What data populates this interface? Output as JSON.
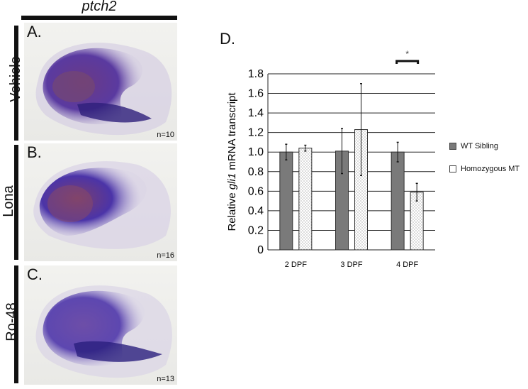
{
  "left": {
    "gene": "ptch2",
    "panels": [
      {
        "letter": "A.",
        "label": "Vehicle",
        "n": "n=10"
      },
      {
        "letter": "B.",
        "label": "Lona",
        "n": "n=16"
      },
      {
        "letter": "C.",
        "label": "Ro-48",
        "n": "n=13"
      }
    ]
  },
  "panel_d": {
    "letter": "D."
  },
  "chart_data": {
    "type": "bar",
    "title": "",
    "xlabel": "",
    "ylabel": "Relative gli1 mRNA transcript",
    "ylabel_parts": {
      "pre": "Relative ",
      "italic": "gli1",
      "post": " mRNA transcript"
    },
    "categories": [
      "2 DPF",
      "3 DPF",
      "4 DPF"
    ],
    "ylim": [
      0,
      1.8
    ],
    "yticks": [
      "0",
      "0.2",
      "0.4",
      "0.6",
      "0.8",
      "1.0",
      "1.2",
      "1.4",
      "1.6",
      "1.8"
    ],
    "grid": true,
    "legend": "right",
    "series": [
      {
        "name": "WT Sibling",
        "values": [
          1.0,
          1.01,
          1.0
        ],
        "err": [
          0.08,
          0.23,
          0.1
        ],
        "color": "#7a7a7a"
      },
      {
        "name": "Homozygous MT",
        "values": [
          1.04,
          1.23,
          0.59
        ],
        "err": [
          0.03,
          0.47,
          0.09
        ],
        "color": "#ffffff"
      }
    ],
    "annotations": [
      {
        "category": "4 DPF",
        "text": "*"
      }
    ]
  }
}
